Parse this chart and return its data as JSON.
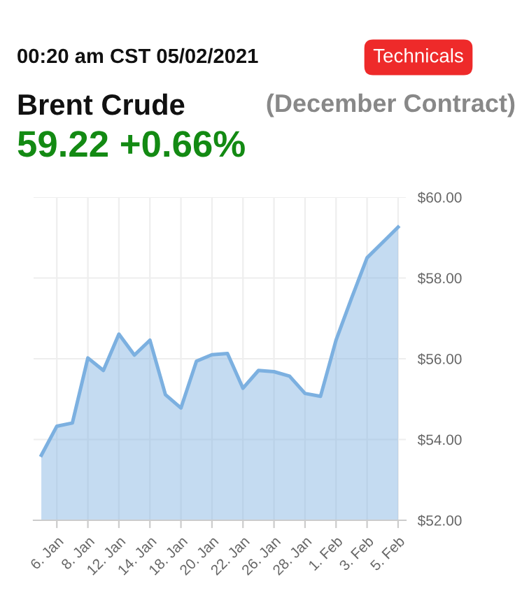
{
  "chart_data": {
    "type": "area",
    "title": "Brent Crude",
    "subtitle": "(December Contract)",
    "annotations": [
      "00:20 am CST 05/02/2021",
      "Technicals",
      "59.22 +0.66%"
    ],
    "categories": [
      null,
      "6. Jan",
      null,
      "8. Jan",
      null,
      "12. Jan",
      null,
      "14. Jan",
      null,
      "18. Jan",
      null,
      "20. Jan",
      null,
      "22. Jan",
      null,
      "26. Jan",
      null,
      "28. Jan",
      null,
      "1. Feb",
      null,
      "3. Feb",
      null,
      "5. Feb"
    ],
    "series": [
      {
        "color": "#7cb0e0",
        "values": [
          53.61,
          54.33,
          54.41,
          56.02,
          55.71,
          56.61,
          56.09,
          56.46,
          55.11,
          54.78,
          55.94,
          56.1,
          56.13,
          55.27,
          55.71,
          55.68,
          55.57,
          55.14,
          55.07,
          56.46,
          57.5,
          58.5,
          58.88,
          59.26
        ]
      }
    ],
    "ylim": [
      52,
      60
    ],
    "yticks": [
      {
        "value": 52,
        "label": "$52.00"
      },
      {
        "value": 54,
        "label": "$54.00"
      },
      {
        "value": 56,
        "label": "$56.00"
      },
      {
        "value": 58,
        "label": "$58.00"
      },
      {
        "value": 60,
        "label": "$60.00"
      }
    ],
    "grid": true,
    "marker": "none",
    "line_style": "solid"
  }
}
